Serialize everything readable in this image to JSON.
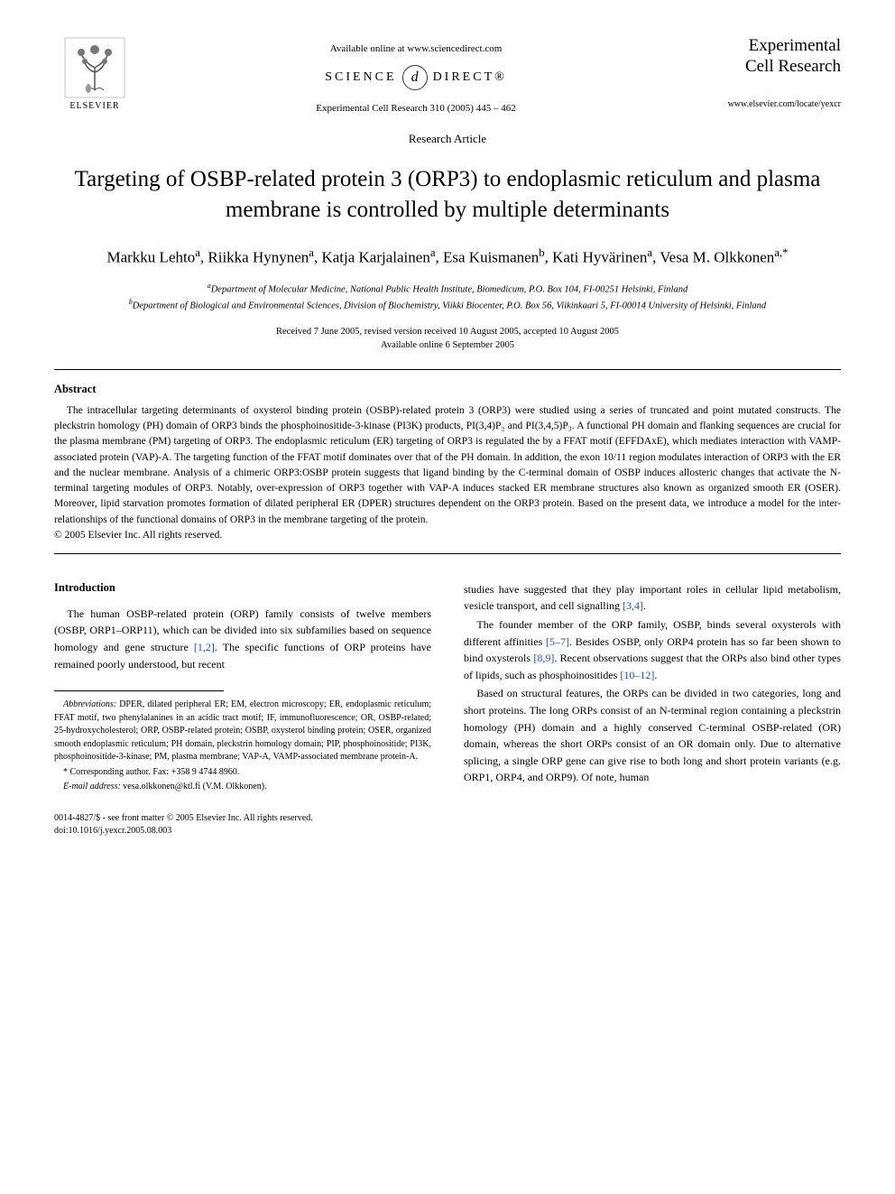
{
  "header": {
    "publisher": "ELSEVIER",
    "available_online": "Available online at www.sciencedirect.com",
    "sciencedirect_left": "SCIENCE",
    "sciencedirect_d": "d",
    "sciencedirect_right": "DIRECT®",
    "journal_ref": "Experimental Cell Research 310 (2005) 445 – 462",
    "journal_name_line1": "Experimental",
    "journal_name_line2": "Cell Research",
    "journal_url": "www.elsevier.com/locate/yexcr"
  },
  "article": {
    "type": "Research Article",
    "title": "Targeting of OSBP-related protein 3 (ORP3) to endoplasmic reticulum and plasma membrane is controlled by multiple determinants",
    "authors_html": "Markku Lehto<sup>a</sup>, Riikka Hynynen<sup>a</sup>, Katja Karjalainen<sup>a</sup>, Esa Kuismanen<sup>b</sup>, Kati Hyvärinen<sup>a</sup>, Vesa M. Olkkonen<sup>a,*</sup>",
    "affil_a": "Department of Molecular Medicine, National Public Health Institute, Biomedicum, P.O. Box 104, FI-00251 Helsinki, Finland",
    "affil_b": "Department of Biological and Environmental Sciences, Division of Biochemistry, Viikki Biocenter, P.O. Box 56, Viikinkaari 5, FI-00014 University of Helsinki, Finland",
    "dates_line1": "Received 7 June 2005, revised version received 10 August 2005, accepted 10 August 2005",
    "dates_line2": "Available online 6 September 2005"
  },
  "abstract": {
    "heading": "Abstract",
    "body": "The intracellular targeting determinants of oxysterol binding protein (OSBP)-related protein 3 (ORP3) were studied using a series of truncated and point mutated constructs. The pleckstrin homology (PH) domain of ORP3 binds the phosphoinositide-3-kinase (PI3K) products, PI(3,4)P₂ and PI(3,4,5)P₃. A functional PH domain and flanking sequences are crucial for the plasma membrane (PM) targeting of ORP3. The endoplasmic reticulum (ER) targeting of ORP3 is regulated the by a FFAT motif (EFFDAxE), which mediates interaction with VAMP-associated protein (VAP)-A. The targeting function of the FFAT motif dominates over that of the PH domain. In addition, the exon 10/11 region modulates interaction of ORP3 with the ER and the nuclear membrane. Analysis of a chimeric ORP3:OSBP protein suggests that ligand binding by the C-terminal domain of OSBP induces allosteric changes that activate the N-terminal targeting modules of ORP3. Notably, over-expression of ORP3 together with VAP-A induces stacked ER membrane structures also known as organized smooth ER (OSER). Moreover, lipid starvation promotes formation of dilated peripheral ER (DPER) structures dependent on the ORP3 protein. Based on the present data, we introduce a model for the inter-relationships of the functional domains of ORP3 in the membrane targeting of the protein.",
    "copyright": "© 2005 Elsevier Inc. All rights reserved."
  },
  "intro": {
    "heading": "Introduction",
    "p1_html": "The human OSBP-related protein (ORP) family consists of twelve members (OSBP, ORP1–ORP11), which can be divided into six subfamilies based on sequence homology and gene structure <span class=\"reflink\">[1,2]</span>. The specific functions of ORP proteins have remained poorly understood, but recent",
    "p2_html": "studies have suggested that they play important roles in cellular lipid metabolism, vesicle transport, and cell signalling <span class=\"reflink\">[3,4]</span>.",
    "p3_html": "The founder member of the ORP family, OSBP, binds several oxysterols with different affinities <span class=\"reflink\">[5–7]</span>. Besides OSBP, only ORP4 protein has so far been shown to bind oxysterols <span class=\"reflink\">[8,9]</span>. Recent observations suggest that the ORPs also bind other types of lipids, such as phosphoinositides <span class=\"reflink\">[10–12]</span>.",
    "p4": "Based on structural features, the ORPs can be divided in two categories, long and short proteins. The long ORPs consist of an N-terminal region containing a pleckstrin homology (PH) domain and a highly conserved C-terminal OSBP-related (OR) domain, whereas the short ORPs consist of an OR domain only. Due to alternative splicing, a single ORP gene can give rise to both long and short protein variants (e.g. ORP1, ORP4, and ORP9). Of note, human"
  },
  "footnotes": {
    "abbrev_label": "Abbreviations:",
    "abbrev_text": " DPER, dilated peripheral ER; EM, electron microscopy; ER, endoplasmic reticulum; FFAT motif, two phenylalanines in an acidic tract motif; IF, immunofluorescence; OR, OSBP-related; 25-hydroxycholesterol; ORP, OSBP-related protein; OSBP, oxysterol binding protein; OSER, organized smooth endoplasmic reticulum; PH domain, pleckstrin homology domain; PIP, phosphoinositide; PI3K, phosphoinositide-3-kinase; PM, plasma membrane; VAP-A, VAMP-associated membrane protein-A.",
    "corr": "* Corresponding author. Fax: +358 9 4744 8960.",
    "email_label": "E-mail address:",
    "email": " vesa.olkkonen@ktl.fi (V.M. Olkkonen)."
  },
  "bottom": {
    "line1": "0014-4827/$ - see front matter © 2005 Elsevier Inc. All rights reserved.",
    "line2": "doi:10.1016/j.yexcr.2005.08.003"
  },
  "colors": {
    "text": "#000000",
    "background": "#ffffff",
    "link": "#2a4fb8",
    "elsevier_orange": "#e67817"
  }
}
